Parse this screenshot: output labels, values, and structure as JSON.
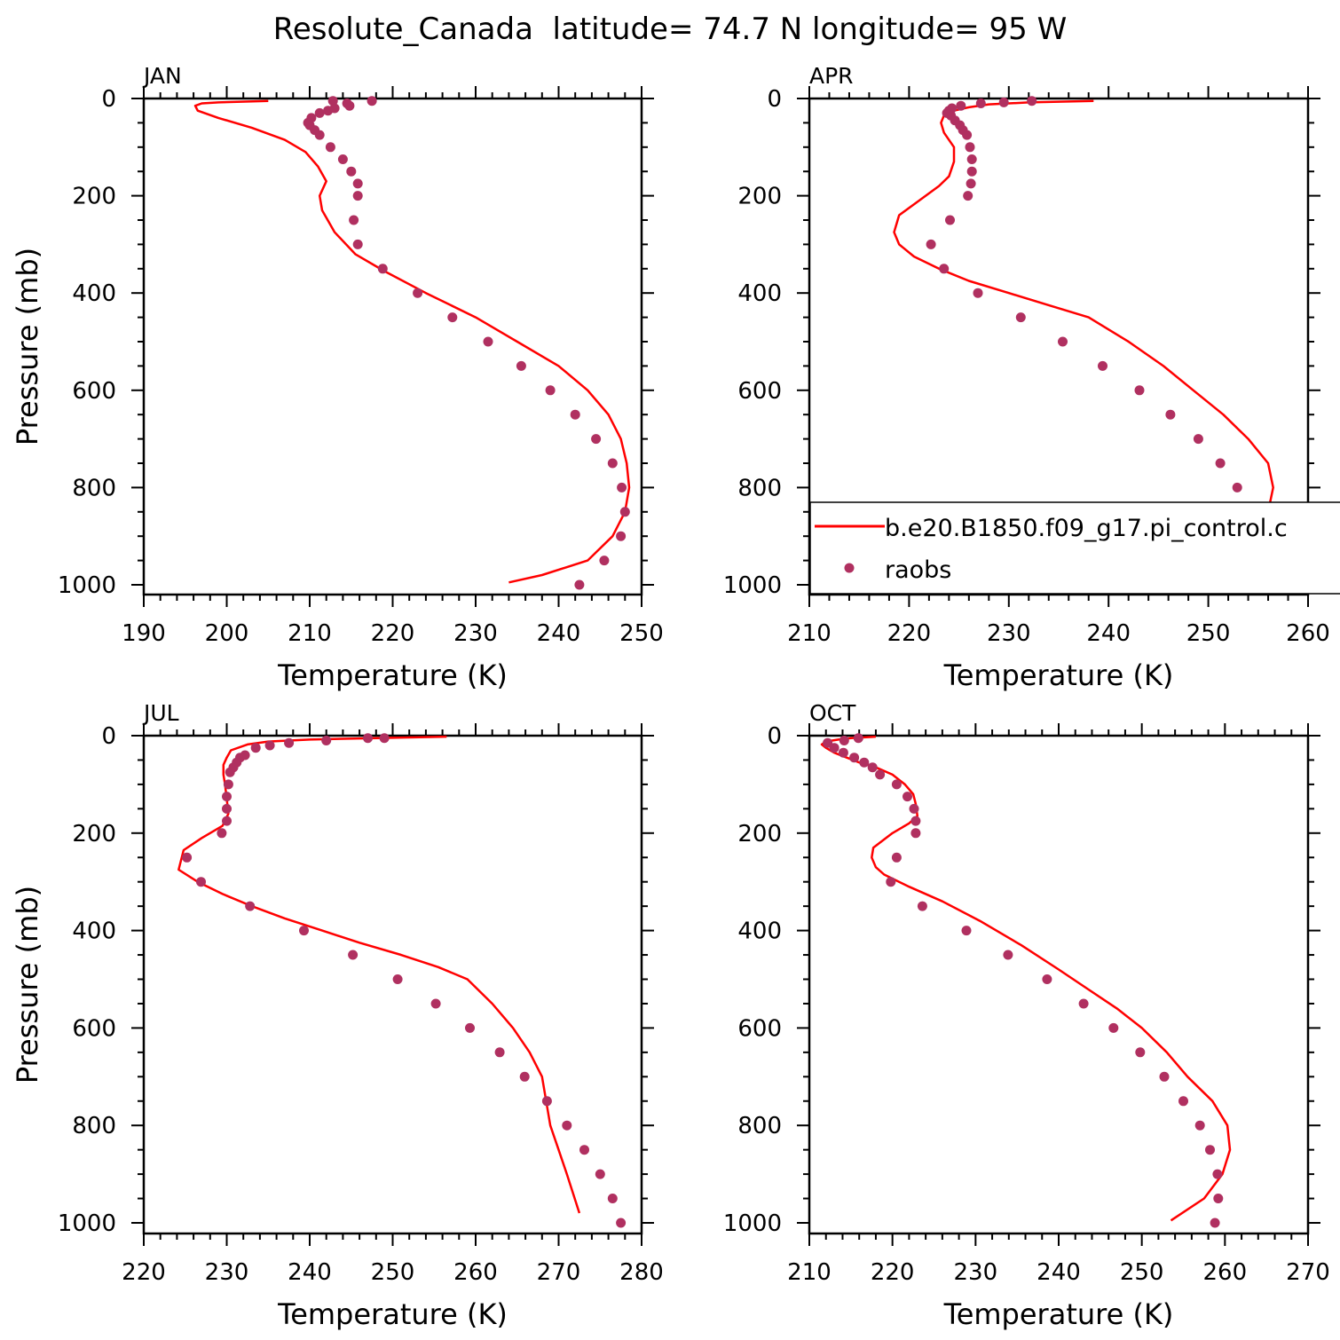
{
  "title": "Resolute_Canada  latitude= 74.7 N longitude= 95 W",
  "colors": {
    "model": "#ff0000",
    "obs": "#b03060"
  },
  "legend": {
    "model_label": "b.e20.B1850.f09_g17.pi_control.c",
    "obs_label": "raobs"
  },
  "chart_data": [
    {
      "type": "line",
      "panel_label": "JAN",
      "xlabel": "Temperature (K)",
      "ylabel": "Pressure (mb)",
      "xlim": [
        190,
        250
      ],
      "xticks": [
        "190",
        "200",
        "210",
        "220",
        "230",
        "240",
        "250"
      ],
      "ylim": [
        1000,
        0
      ],
      "yticks": [
        "0",
        "200",
        "400",
        "600",
        "800",
        "1000"
      ],
      "y_inverted": true,
      "series": [
        {
          "name": "b.e20.B1850.f09_g17.pi_control.c",
          "style": "line",
          "x": [
            205,
            199,
            197,
            196.2,
            196.5,
            199,
            203,
            207,
            209.5,
            211,
            212,
            211.2,
            211.5,
            213,
            215.5,
            219,
            224,
            230,
            235,
            240,
            243.5,
            246,
            247.5,
            248.2,
            248.5,
            248,
            246.5,
            243.5,
            238,
            234
          ],
          "y": [
            5,
            8,
            10,
            15,
            25,
            40,
            60,
            85,
            110,
            140,
            170,
            200,
            230,
            275,
            320,
            355,
            400,
            450,
            500,
            550,
            600,
            650,
            700,
            750,
            800,
            850,
            900,
            950,
            980,
            995
          ]
        },
        {
          "name": "raobs",
          "style": "markers",
          "x": [
            217.5,
            212.8,
            214.5,
            214.8,
            213,
            212.2,
            211.2,
            210.2,
            209.8,
            210,
            210.6,
            211.2,
            212.5,
            214,
            215,
            215.8,
            215.8,
            215.3,
            215.8,
            218.8,
            223,
            227.2,
            231.5,
            235.5,
            239,
            242,
            244.5,
            246.5,
            247.6,
            248,
            247.5,
            245.5,
            242.5
          ],
          "y": [
            5,
            5,
            10,
            15,
            20,
            25,
            30,
            40,
            50,
            55,
            65,
            75,
            100,
            125,
            150,
            175,
            200,
            250,
            300,
            350,
            400,
            450,
            500,
            550,
            600,
            650,
            700,
            750,
            800,
            850,
            900,
            950,
            1000
          ]
        }
      ]
    },
    {
      "type": "line",
      "panel_label": "APR",
      "xlabel": "Temperature (K)",
      "ylabel": "",
      "xlim": [
        210,
        260
      ],
      "xticks": [
        "210",
        "220",
        "230",
        "240",
        "250",
        "260"
      ],
      "ylim": [
        1000,
        0
      ],
      "yticks": [
        "0",
        "200",
        "400",
        "600",
        "800",
        "1000"
      ],
      "y_inverted": true,
      "series": [
        {
          "name": "b.e20.B1850.f09_g17.pi_control.c",
          "style": "line",
          "x": [
            238.5,
            232,
            228,
            226,
            224.5,
            223.5,
            223.2,
            223.5,
            224.5,
            224.5,
            224,
            223,
            221,
            219,
            218.5,
            219,
            220.5,
            223,
            226,
            230,
            234,
            238,
            242,
            245.5,
            248.5,
            251.5,
            254,
            256,
            256.5,
            256,
            254.5,
            251.5,
            246
          ],
          "y": [
            5,
            8,
            12,
            18,
            25,
            35,
            50,
            70,
            100,
            130,
            160,
            180,
            210,
            240,
            275,
            300,
            325,
            350,
            375,
            400,
            425,
            450,
            500,
            550,
            600,
            650,
            700,
            750,
            800,
            850,
            900,
            950,
            1000
          ]
        },
        {
          "name": "raobs",
          "style": "markers",
          "x": [
            232.3,
            229.5,
            227.2,
            225.2,
            224.3,
            224,
            223.8,
            224.2,
            224.6,
            225.1,
            225.4,
            225.8,
            226.1,
            226.3,
            226.3,
            226.2,
            225.9,
            224.1,
            222.2,
            223.5,
            226.9,
            231.2,
            235.4,
            239.4,
            243.1,
            246.2,
            249,
            251.2,
            252.9,
            253.9,
            254,
            253,
            251.1
          ],
          "y": [
            5,
            8,
            10,
            15,
            20,
            25,
            30,
            35,
            45,
            55,
            65,
            75,
            100,
            125,
            150,
            175,
            200,
            250,
            300,
            350,
            400,
            450,
            500,
            550,
            600,
            650,
            700,
            750,
            800,
            850,
            900,
            950,
            1000
          ]
        }
      ]
    },
    {
      "type": "line",
      "panel_label": "JUL",
      "xlabel": "Temperature (K)",
      "ylabel": "Pressure (mb)",
      "xlim": [
        220,
        280
      ],
      "xticks": [
        "220",
        "230",
        "240",
        "250",
        "260",
        "270",
        "280"
      ],
      "ylim": [
        1000,
        0
      ],
      "yticks": [
        "0",
        "200",
        "400",
        "600",
        "800",
        "1000"
      ],
      "y_inverted": true,
      "series": [
        {
          "name": "b.e20.B1850.f09_g17.pi_control.c",
          "style": "line",
          "x": [
            256.5,
            248,
            240,
            235,
            232.5,
            230.5,
            230,
            229.6,
            229.6,
            229.8,
            230,
            230.2,
            229.5,
            227,
            224.8,
            224.2,
            226.5,
            229.5,
            233,
            237,
            241.5,
            246,
            251,
            255.5,
            259,
            262,
            264.5,
            266.5,
            268,
            269,
            270,
            271,
            272.5
          ],
          "y": [
            2,
            5,
            8,
            12,
            18,
            30,
            45,
            60,
            80,
            100,
            130,
            160,
            185,
            210,
            235,
            275,
            300,
            325,
            350,
            375,
            400,
            425,
            450,
            475,
            500,
            550,
            600,
            650,
            700,
            800,
            850,
            900,
            980
          ]
        },
        {
          "name": "raobs",
          "style": "markers",
          "x": [
            249,
            247,
            242,
            237.5,
            235.2,
            233.5,
            232.2,
            231.6,
            231.2,
            230.8,
            230.4,
            230.2,
            230,
            230,
            230,
            229.4,
            225.2,
            226.9,
            232.8,
            239.3,
            245.2,
            250.6,
            255.2,
            259.3,
            262.9,
            265.9,
            268.6,
            271,
            273.1,
            275,
            276.5,
            277.5
          ],
          "y": [
            5,
            5,
            10,
            15,
            20,
            25,
            40,
            45,
            55,
            65,
            75,
            100,
            125,
            150,
            175,
            200,
            250,
            300,
            350,
            400,
            450,
            500,
            550,
            600,
            650,
            700,
            750,
            800,
            850,
            900,
            950,
            1000
          ]
        }
      ]
    },
    {
      "type": "line",
      "panel_label": "OCT",
      "xlabel": "Temperature (K)",
      "ylabel": "",
      "xlim": [
        210,
        270
      ],
      "xticks": [
        "210",
        "220",
        "230",
        "240",
        "250",
        "260",
        "270"
      ],
      "ylim": [
        1000,
        0
      ],
      "yticks": [
        "0",
        "200",
        "400",
        "600",
        "800",
        "1000"
      ],
      "y_inverted": true,
      "series": [
        {
          "name": "b.e20.B1850.f09_g17.pi_control.c",
          "style": "line",
          "x": [
            218,
            215,
            213.5,
            212,
            211.5,
            212,
            213,
            214.5,
            216,
            218,
            220,
            221.5,
            222.5,
            222.8,
            223,
            222,
            220,
            217.7,
            217.5,
            218,
            219,
            222,
            226,
            230.5,
            235.5,
            240,
            243.5,
            247,
            250,
            253,
            255.5,
            258.5,
            260.3,
            260.6,
            259.7,
            257.5,
            253.5
          ],
          "y": [
            2,
            5,
            8,
            12,
            18,
            25,
            35,
            45,
            55,
            65,
            80,
            100,
            120,
            140,
            165,
            180,
            200,
            230,
            250,
            270,
            285,
            310,
            340,
            380,
            430,
            480,
            520,
            560,
            600,
            650,
            700,
            750,
            800,
            850,
            900,
            950,
            995
          ]
        },
        {
          "name": "raobs",
          "style": "markers",
          "x": [
            215.9,
            214.2,
            212.2,
            213,
            214.1,
            215.4,
            216.6,
            217.6,
            218.5,
            220.5,
            221.8,
            222.6,
            222.8,
            222.8,
            220.5,
            219.8,
            223.6,
            228.9,
            233.9,
            238.6,
            243,
            246.6,
            249.8,
            252.7,
            255,
            257,
            258.2,
            259.1,
            259.2,
            258.8
          ],
          "y": [
            5,
            10,
            15,
            25,
            35,
            45,
            55,
            65,
            80,
            100,
            125,
            150,
            175,
            200,
            250,
            300,
            350,
            400,
            450,
            500,
            550,
            600,
            650,
            700,
            750,
            800,
            850,
            900,
            950,
            1000
          ]
        }
      ]
    }
  ]
}
